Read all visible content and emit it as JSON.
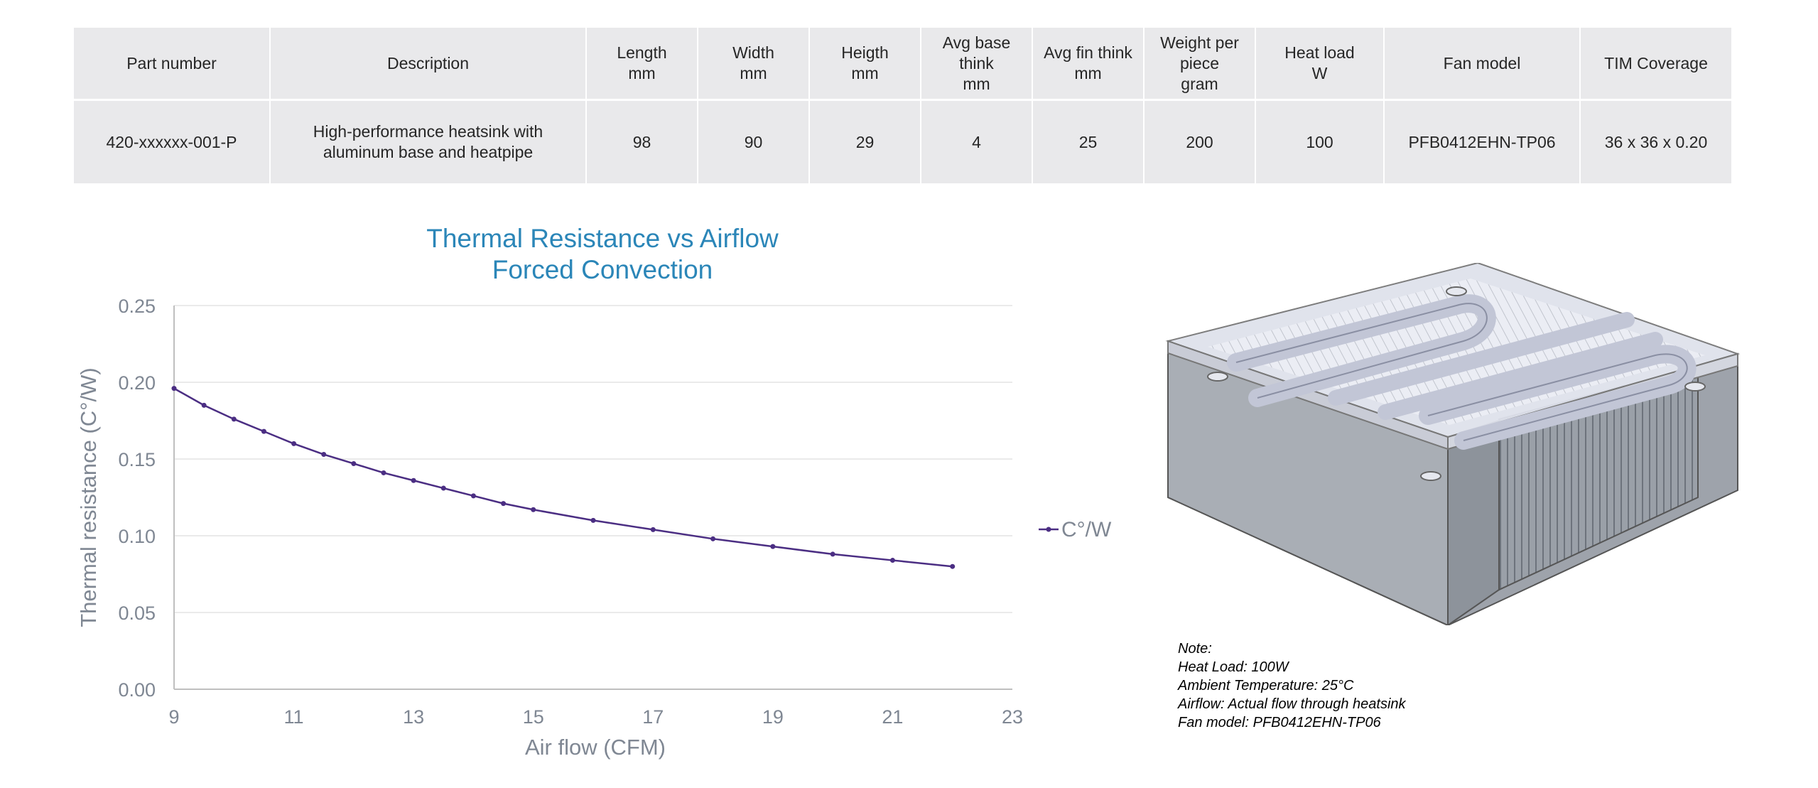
{
  "table": {
    "headers": [
      [
        "Part number"
      ],
      [
        "Description"
      ],
      [
        "Length",
        "mm"
      ],
      [
        "Width",
        "mm"
      ],
      [
        "Heigth",
        "mm"
      ],
      [
        "Avg base",
        "think",
        "mm"
      ],
      [
        "Avg fin think",
        "mm"
      ],
      [
        "Weight per",
        "piece",
        "gram"
      ],
      [
        "Heat load",
        "W"
      ],
      [
        "Fan model"
      ],
      [
        "TIM Coverage"
      ]
    ],
    "rows": [
      [
        [
          "420-xxxxxx-001-P"
        ],
        [
          "High-performance heatsink with",
          "aluminum base and heatpipe"
        ],
        [
          "98"
        ],
        [
          "90"
        ],
        [
          "29"
        ],
        [
          "4"
        ],
        [
          "25"
        ],
        [
          "200"
        ],
        [
          "100"
        ],
        [
          "PFB0412EHN-TP06"
        ],
        [
          "36 x 36 x 0.20"
        ]
      ]
    ]
  },
  "chart_data": {
    "type": "line",
    "title": [
      "Thermal Resistance vs Airflow",
      "Forced Convection"
    ],
    "xlabel": "Air flow (CFM)",
    "ylabel": "Thermal resistance (C°/W)",
    "xlim": [
      9,
      23
    ],
    "ylim": [
      0,
      0.25
    ],
    "xticks": [
      9,
      11,
      13,
      15,
      17,
      19,
      21,
      23
    ],
    "xtick_labels": [
      "9",
      "11",
      "13",
      "15",
      "17",
      "19",
      "21",
      "23"
    ],
    "yticks": [
      0,
      0.05,
      0.1,
      0.15,
      0.2,
      0.25
    ],
    "ytick_labels": [
      "0.00",
      "0.05",
      "0.10",
      "0.15",
      "0.20",
      "0.25"
    ],
    "grid": true,
    "legend_position": "right",
    "series": [
      {
        "name": "C°/W",
        "color": "#4b2e83",
        "x": [
          9,
          9.5,
          10,
          10.5,
          11,
          11.5,
          12,
          12.5,
          13,
          13.5,
          14,
          14.5,
          15,
          16,
          17,
          18,
          19,
          20,
          21,
          22
        ],
        "y": [
          0.196,
          0.185,
          0.176,
          0.168,
          0.16,
          0.153,
          0.147,
          0.141,
          0.136,
          0.131,
          0.126,
          0.121,
          0.117,
          0.11,
          0.104,
          0.098,
          0.093,
          0.088,
          0.084,
          0.08
        ]
      }
    ]
  },
  "note": {
    "lines": [
      "Note:",
      "Heat Load: 100W",
      "Ambient Temperature: 25°C",
      "Airflow: Actual flow through heatsink",
      "Fan model: PFB0412EHN-TP06"
    ]
  }
}
